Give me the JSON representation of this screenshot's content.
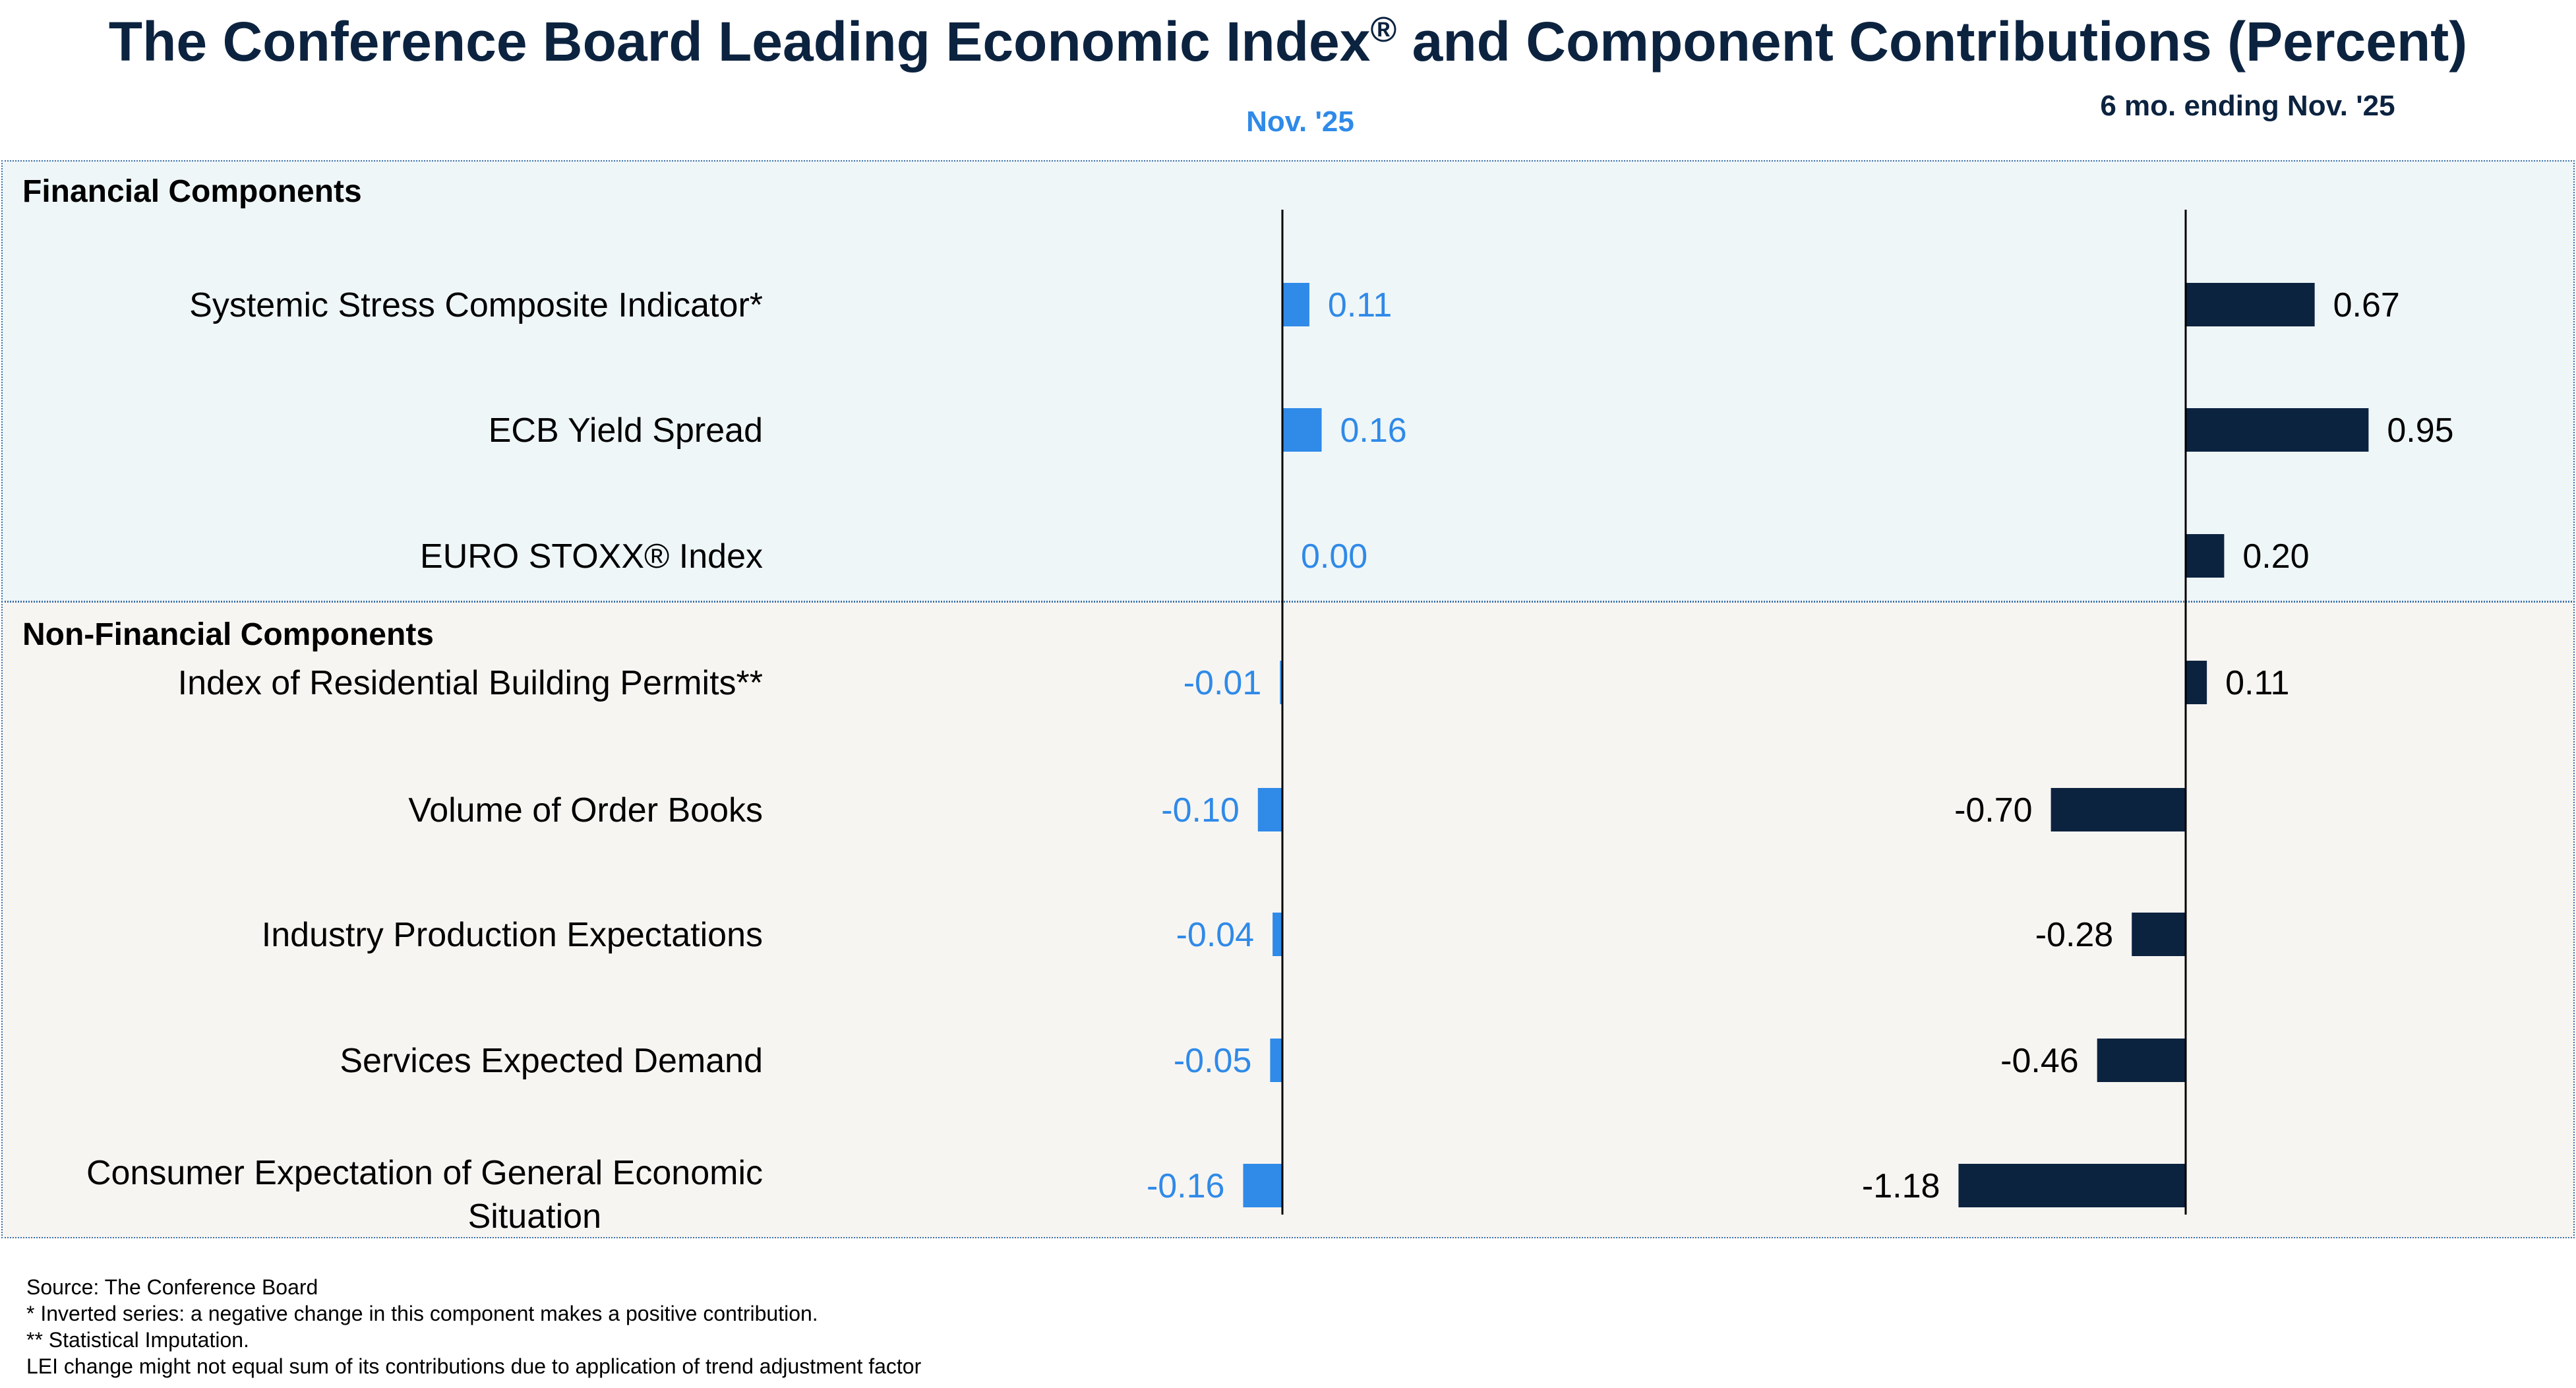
{
  "title": {
    "main": "The Conference Board Leading Economic Index",
    "reg_mark": "®",
    "rest": " and Component Contributions (Percent)"
  },
  "columns": {
    "left_header": "Nov. '25",
    "right_header": "6 mo. ending Nov. '25"
  },
  "sections": {
    "financial": "Financial Components",
    "non_financial": "Non-Financial Components"
  },
  "colors": {
    "nov_bar": "#2f8ae8",
    "six_month_bar": "#0c2340",
    "nov_label": "#2f8ae8",
    "six_month_label": "#000000"
  },
  "chart_data": {
    "type": "bar",
    "orientation": "horizontal",
    "title": "The Conference Board Leading Economic Index® and Component Contributions (Percent)",
    "categories": [
      "Systemic Stress Composite Indicator*",
      "ECB Yield Spread",
      "EURO STOXX® Index",
      "Index of Residential Building Permits**",
      "Volume of Order Books",
      "Industry Production Expectations",
      "Services Expected Demand",
      "Consumer Expectation of General Economic Situation"
    ],
    "category_groups": [
      "financial",
      "financial",
      "financial",
      "non_financial",
      "non_financial",
      "non_financial",
      "non_financial",
      "non_financial"
    ],
    "series": [
      {
        "name": "Nov. '25",
        "values": [
          0.11,
          0.16,
          0.0,
          -0.01,
          -0.1,
          -0.04,
          -0.05,
          -0.16
        ],
        "labels": [
          "0.11",
          "0.16",
          "0.00",
          "-0.01",
          "-0.10",
          "-0.04",
          "-0.05",
          "-0.16"
        ]
      },
      {
        "name": "6 mo. ending Nov. '25",
        "values": [
          0.67,
          0.95,
          0.2,
          0.11,
          -0.7,
          -0.28,
          -0.46,
          -1.18
        ],
        "labels": [
          "0.67",
          "0.95",
          "0.20",
          "0.11",
          "-0.70",
          "-0.28",
          "-0.46",
          "-1.18"
        ]
      }
    ],
    "xlabel": "",
    "ylabel": "",
    "grid": false,
    "legend": "none"
  },
  "footnotes": [
    "Source: The Conference Board",
    "* Inverted series: a negative change in this component makes a positive contribution.",
    "**  Statistical Imputation.",
    "LEI change might not equal sum of its contributions due to application of trend adjustment factor"
  ]
}
